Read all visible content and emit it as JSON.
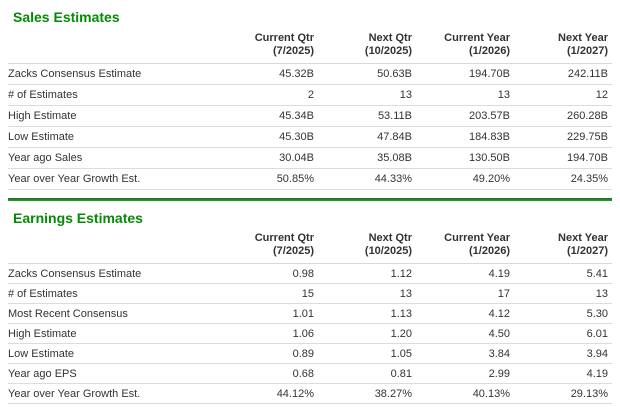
{
  "colors": {
    "title_green": "#048b04",
    "separator_green": "#2f9b2f",
    "text": "#333333",
    "row_border": "#dcdcdc",
    "background": "#ffffff"
  },
  "sections": [
    {
      "title": "Sales Estimates",
      "columns": [
        {
          "label": "Current Qtr",
          "sub": "(7/2025)"
        },
        {
          "label": "Next Qtr",
          "sub": "(10/2025)"
        },
        {
          "label": "Current Year",
          "sub": "(1/2026)"
        },
        {
          "label": "Next Year",
          "sub": "(1/2027)"
        }
      ],
      "rows": [
        {
          "label": "Zacks Consensus Estimate",
          "values": [
            "45.32B",
            "50.63B",
            "194.70B",
            "242.11B"
          ]
        },
        {
          "label": "# of Estimates",
          "values": [
            "2",
            "13",
            "13",
            "12"
          ]
        },
        {
          "label": "High Estimate",
          "values": [
            "45.34B",
            "53.11B",
            "203.57B",
            "260.28B"
          ]
        },
        {
          "label": "Low Estimate",
          "values": [
            "45.30B",
            "47.84B",
            "184.83B",
            "229.75B"
          ]
        },
        {
          "label": "Year ago Sales",
          "values": [
            "30.04B",
            "35.08B",
            "130.50B",
            "194.70B"
          ]
        },
        {
          "label": "Year over Year Growth Est.",
          "values": [
            "50.85%",
            "44.33%",
            "49.20%",
            "24.35%"
          ]
        }
      ]
    },
    {
      "title": "Earnings Estimates",
      "columns": [
        {
          "label": "Current Qtr",
          "sub": "(7/2025)"
        },
        {
          "label": "Next Qtr",
          "sub": "(10/2025)"
        },
        {
          "label": "Current Year",
          "sub": "(1/2026)"
        },
        {
          "label": "Next Year",
          "sub": "(1/2027)"
        }
      ],
      "rows": [
        {
          "label": "Zacks Consensus Estimate",
          "values": [
            "0.98",
            "1.12",
            "4.19",
            "5.41"
          ]
        },
        {
          "label": "# of Estimates",
          "values": [
            "15",
            "13",
            "17",
            "13"
          ]
        },
        {
          "label": "Most Recent Consensus",
          "values": [
            "1.01",
            "1.13",
            "4.12",
            "5.30"
          ]
        },
        {
          "label": "High Estimate",
          "values": [
            "1.06",
            "1.20",
            "4.50",
            "6.01"
          ]
        },
        {
          "label": "Low Estimate",
          "values": [
            "0.89",
            "1.05",
            "3.84",
            "3.94"
          ]
        },
        {
          "label": "Year ago EPS",
          "values": [
            "0.68",
            "0.81",
            "2.99",
            "4.19"
          ]
        },
        {
          "label": "Year over Year Growth Est.",
          "values": [
            "44.12%",
            "38.27%",
            "40.13%",
            "29.13%"
          ]
        }
      ]
    }
  ]
}
